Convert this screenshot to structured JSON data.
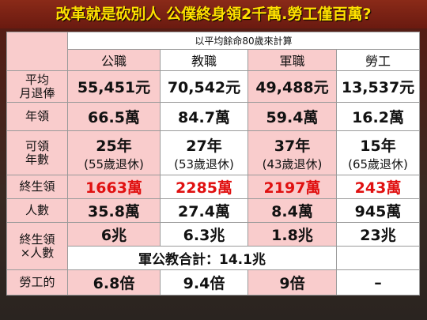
{
  "header": {
    "title": "改革就是砍別人 公僕終身領2千萬.勞工僅百萬?"
  },
  "table": {
    "caption": "以平均餘命80歲來計算",
    "columns": [
      "公職",
      "教職",
      "軍職",
      "勞工"
    ],
    "rows": [
      {
        "label": [
          "平均",
          "月退俸"
        ],
        "cells": [
          "55,451元",
          "70,542元",
          "49,488元",
          "13,537元"
        ]
      },
      {
        "label": [
          "年領"
        ],
        "cells": [
          "66.5萬",
          "84.7萬",
          "59.4萬",
          "16.2萬"
        ]
      },
      {
        "label": [
          "可領",
          "年數"
        ],
        "cells": [
          {
            "years": "25年",
            "note": "(55歲退休)"
          },
          {
            "years": "27年",
            "note": "(53歲退休)"
          },
          {
            "years": "37年",
            "note": "(43歲退休)"
          },
          {
            "years": "15年",
            "note": "(65歲退休)"
          }
        ]
      },
      {
        "label": [
          "終生領"
        ],
        "cells": [
          "1663萬",
          "2285萬",
          "2197萬",
          "243萬"
        ],
        "color": "#e01010"
      },
      {
        "label": [
          "人數"
        ],
        "cells": [
          "35.8萬",
          "27.4萬",
          "8.4萬",
          "945萬"
        ]
      },
      {
        "label": [
          "終生領",
          "×人數"
        ],
        "cells": [
          "6兆",
          "6.3兆",
          "1.8兆",
          "23兆"
        ],
        "total": "軍公教合計：14.1兆"
      },
      {
        "label": [
          "勞工的"
        ],
        "cells": [
          "6.8倍",
          "9.4倍",
          "9倍",
          "–"
        ]
      }
    ]
  }
}
